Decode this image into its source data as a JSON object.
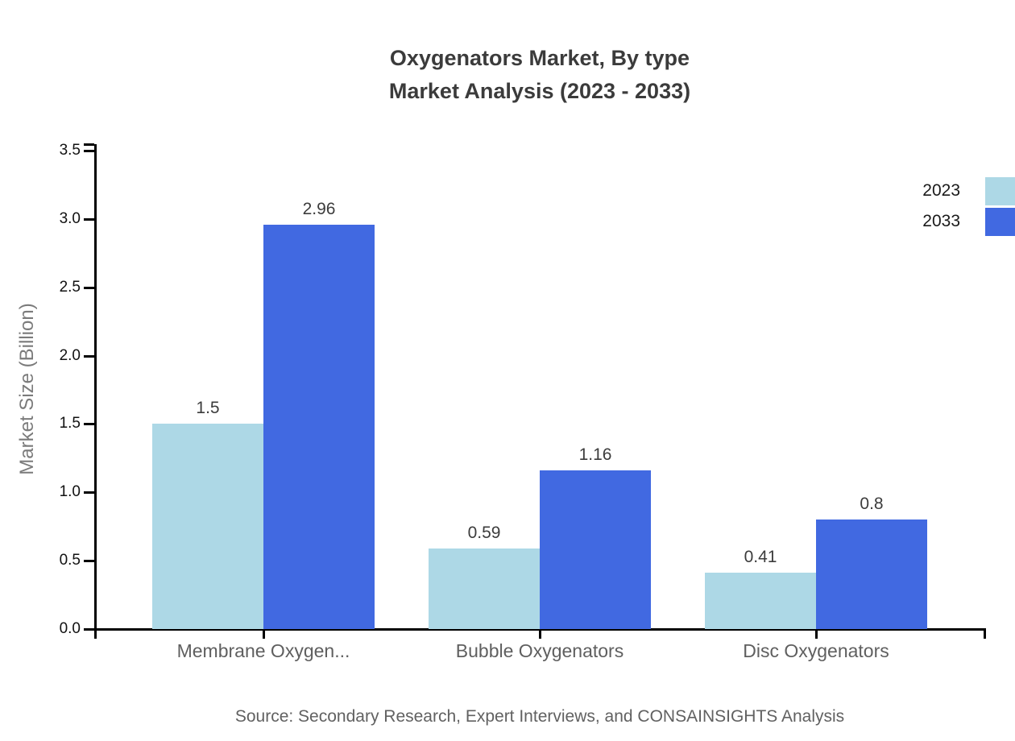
{
  "title": {
    "line1": "Oxygenators Market, By type",
    "line2": "Market Analysis (2023 - 2033)"
  },
  "source_note": "Source: Secondary Research, Expert Interviews, and CONSAINSIGHTS Analysis",
  "chart_data": {
    "type": "bar",
    "title": "Oxygenators Market, By type — Market Analysis (2023 - 2033)",
    "categories": [
      "Membrane Oxygen...",
      "Bubble Oxygenators",
      "Disc Oxygenators"
    ],
    "series": [
      {
        "name": "2023",
        "color": "#add8e6",
        "values": [
          1.5,
          0.59,
          0.41
        ],
        "labels": [
          "1.5",
          "0.59",
          "0.41"
        ]
      },
      {
        "name": "2033",
        "color": "#4169e1",
        "values": [
          2.96,
          1.16,
          0.8
        ],
        "labels": [
          "2.96",
          "1.16",
          "0.8"
        ]
      }
    ],
    "xlabel": "",
    "ylabel": "Market Size (Billion)",
    "ylim": [
      0,
      3.5
    ],
    "ytick_step": 0.5,
    "ytick_labels": [
      "0.0",
      "0.5",
      "1.0",
      "1.5",
      "2.0",
      "2.5",
      "3.0",
      "3.5"
    ],
    "grid": false,
    "legend_position": "top-right",
    "axis_color": "#000000",
    "background_color": "#ffffff"
  }
}
